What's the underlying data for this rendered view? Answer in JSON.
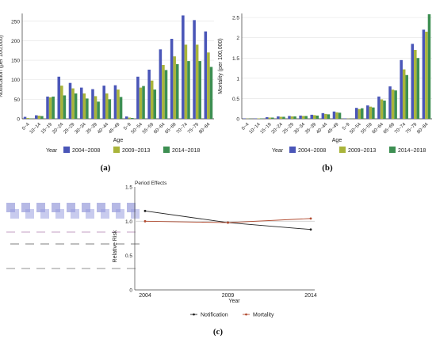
{
  "colors": {
    "s2004": "#4a56b8",
    "s2009": "#a9b43a",
    "s2014": "#3d8f52",
    "notification": "#222222",
    "mortality": "#b14a2f",
    "refline": "#cfcfcf"
  },
  "panel_a": {
    "caption": "(a)",
    "legend_title": "Year"
  },
  "panel_b": {
    "caption": "(b)",
    "legend_title": "Year"
  },
  "panel_c": {
    "caption": "(c)"
  },
  "chart_data": [
    {
      "type": "bar",
      "xlabel": "Age",
      "ylabel": "Notification (per 100,000)",
      "ylim": [
        0,
        270
      ],
      "yticks": [
        0,
        50,
        100,
        150,
        200,
        250
      ],
      "grid": true,
      "legend": "bottom",
      "categories": [
        "0~4",
        "10~14",
        "15~19",
        "20~24",
        "25~29",
        "30~34",
        "35~39",
        "40~44",
        "45~49",
        "5~9",
        "50~54",
        "55~59",
        "60~64",
        "65~69",
        "70~74",
        "75~79",
        "80~84"
      ],
      "series": [
        {
          "name": "2004~2008",
          "color_key": "s2004",
          "values": [
            5,
            9,
            57,
            108,
            92,
            80,
            76,
            85,
            86,
            6,
            108,
            126,
            178,
            205,
            265,
            253,
            224
          ]
        },
        {
          "name": "2009~2013",
          "color_key": "s2009",
          "values": [
            2,
            8,
            55,
            85,
            78,
            65,
            58,
            65,
            75,
            3,
            80,
            98,
            138,
            160,
            190,
            190,
            170
          ]
        },
        {
          "name": "2014~2018",
          "color_key": "s2014",
          "values": [
            1,
            7,
            57,
            60,
            65,
            52,
            44,
            50,
            56,
            2,
            84,
            75,
            125,
            140,
            148,
            148,
            133
          ]
        }
      ]
    },
    {
      "type": "bar",
      "xlabel": "Age",
      "ylabel": "Mortality (per 100,000)",
      "ylim": [
        0,
        2.6
      ],
      "yticks": [
        0,
        0.5,
        1,
        1.5,
        2,
        2.5
      ],
      "ytick_labels": [
        "0",
        "0.5",
        "1",
        "1.5",
        "2",
        "2.5"
      ],
      "grid": true,
      "legend": "bottom",
      "categories": [
        "0~4",
        "10~14",
        "15~19",
        "20~24",
        "25~29",
        "30~34",
        "35~39",
        "40~44",
        "45~49",
        "5~9",
        "50~54",
        "55~59",
        "60~64",
        "65~69",
        "70~74",
        "75~79",
        "80~84"
      ],
      "series": [
        {
          "name": "2004~2008",
          "color_key": "s2004",
          "values": [
            0.01,
            0.01,
            0.04,
            0.06,
            0.07,
            0.08,
            0.1,
            0.14,
            0.18,
            0.01,
            0.27,
            0.33,
            0.55,
            0.8,
            1.45,
            1.85,
            2.2
          ]
        },
        {
          "name": "2009~2013",
          "color_key": "s2009",
          "values": [
            0.005,
            0.01,
            0.03,
            0.05,
            0.06,
            0.07,
            0.09,
            0.12,
            0.16,
            0.005,
            0.24,
            0.3,
            0.48,
            0.72,
            1.22,
            1.7,
            2.15
          ]
        },
        {
          "name": "2014~2018",
          "color_key": "s2014",
          "values": [
            0.005,
            0.01,
            0.03,
            0.05,
            0.06,
            0.07,
            0.08,
            0.11,
            0.15,
            0.005,
            0.26,
            0.28,
            0.45,
            0.7,
            1.08,
            1.5,
            2.58
          ]
        }
      ]
    },
    {
      "type": "line",
      "title": "Period Effects",
      "xlabel": "Year",
      "ylabel": "Relative Risk",
      "x": [
        2004,
        2009,
        2014
      ],
      "xticks": [
        "2004",
        "2009",
        "2014"
      ],
      "ylim": [
        0,
        1.5
      ],
      "yticks": [
        "0",
        "0.5",
        "1.0",
        "1.5"
      ],
      "reference_line": 1.0,
      "legend": "bottom",
      "series": [
        {
          "name": "Notification",
          "color_key": "notification",
          "marker": "+",
          "values": [
            1.15,
            0.98,
            0.88
          ]
        },
        {
          "name": "Mortality",
          "color_key": "mortality",
          "marker": "x",
          "values": [
            1.0,
            0.98,
            1.04
          ]
        }
      ]
    }
  ]
}
